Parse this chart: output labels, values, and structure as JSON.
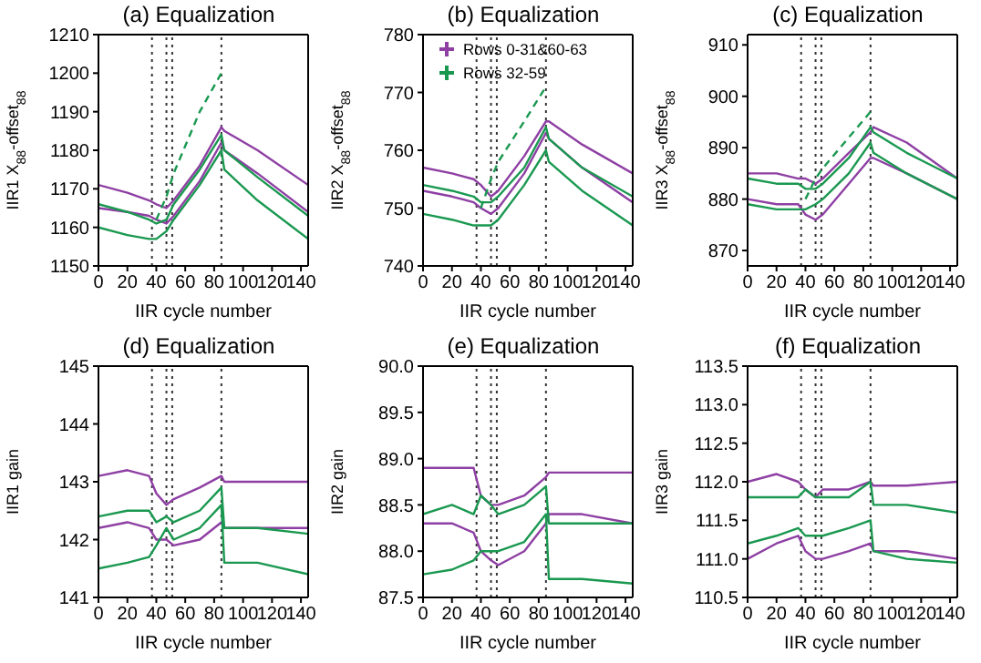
{
  "chart_data": [
    {
      "type": "line",
      "title": "(a) Equalization",
      "xlabel": "IIR cycle number",
      "ylabel": "IIR1 X$_{88}$-offset$_{88}$",
      "xlim": [
        0,
        145
      ],
      "xticks": [
        0,
        20,
        40,
        60,
        80,
        100,
        120,
        140
      ],
      "ylim": [
        1150,
        1210
      ],
      "yticks": [
        1150,
        1160,
        1170,
        1180,
        1190,
        1200,
        1210
      ],
      "x": [
        0,
        20,
        35,
        40,
        47,
        52,
        70,
        85,
        87,
        110,
        145
      ],
      "ref_lines": [
        {
          "axis": "x",
          "value": 37,
          "line_style": "dotted"
        },
        {
          "axis": "x",
          "value": 47,
          "line_style": "dotted"
        },
        {
          "axis": "x",
          "value": 51,
          "line_style": "dotted"
        },
        {
          "axis": "x",
          "value": 85,
          "line_style": "dotted"
        }
      ],
      "series": [
        {
          "color": "#8e3fa3",
          "values": [
            1171,
            1169,
            1167,
            1166,
            1165,
            1167,
            1176,
            1186,
            1185,
            1180,
            1171
          ]
        },
        {
          "color": "#8e3fa3",
          "values": [
            1165,
            1164,
            1163,
            1162,
            1161,
            1163,
            1172,
            1182,
            1180,
            1174,
            1164
          ]
        },
        {
          "color": "#1a9850",
          "values": [
            1166,
            1164,
            1162,
            1161,
            1162,
            1166,
            1175,
            1184,
            1180,
            1173,
            1163
          ]
        },
        {
          "color": "#1a9850",
          "values": [
            1160,
            1158,
            1157,
            1157,
            1159,
            1162,
            1171,
            1180,
            1175,
            1167,
            1157
          ]
        },
        {
          "color": "#1a9850",
          "line_style": "dashed",
          "x": [
            40,
            47,
            52,
            70,
            85
          ],
          "values": [
            1162,
            1168,
            1174,
            1190,
            1200
          ]
        }
      ]
    },
    {
      "type": "line",
      "title": "(b) Equalization",
      "xlabel": "IIR cycle number",
      "ylabel": "IIR2 X$_{88}$-offset$_{88}$",
      "xlim": [
        0,
        145
      ],
      "xticks": [
        0,
        20,
        40,
        60,
        80,
        100,
        120,
        140
      ],
      "ylim": [
        740,
        780
      ],
      "yticks": [
        740,
        750,
        760,
        770,
        780
      ],
      "x": [
        0,
        20,
        35,
        40,
        47,
        52,
        70,
        85,
        87,
        110,
        145
      ],
      "legend": "top left",
      "ref_lines": [
        {
          "axis": "x",
          "value": 37,
          "line_style": "dotted"
        },
        {
          "axis": "x",
          "value": 47,
          "line_style": "dotted"
        },
        {
          "axis": "x",
          "value": 51,
          "line_style": "dotted"
        },
        {
          "axis": "x",
          "value": 85,
          "line_style": "dotted"
        }
      ],
      "series": [
        {
          "name": "Rows 0-31&60-63",
          "color": "#8e3fa3",
          "values": [
            757,
            756,
            755,
            754,
            752,
            753,
            759,
            765,
            765,
            761,
            756
          ]
        },
        {
          "color": "#8e3fa3",
          "values": [
            753,
            752,
            751,
            750,
            749,
            750,
            756,
            763,
            762,
            757,
            751
          ]
        },
        {
          "name": "Rows 32-59",
          "color": "#1a9850",
          "values": [
            754,
            753,
            752,
            751,
            751,
            752,
            757,
            764,
            762,
            757,
            752
          ]
        },
        {
          "color": "#1a9850",
          "values": [
            749,
            748,
            747,
            747,
            747,
            748,
            754,
            760,
            758,
            753,
            747
          ]
        },
        {
          "color": "#1a9850",
          "line_style": "dashed",
          "x": [
            40,
            47,
            52,
            70,
            85
          ],
          "values": [
            750,
            755,
            758,
            765,
            771
          ]
        }
      ]
    },
    {
      "type": "line",
      "title": "(c) Equalization",
      "xlabel": "IIR cycle number",
      "ylabel": "IIR3 X$_{88}$-offset$_{88}$",
      "xlim": [
        0,
        145
      ],
      "xticks": [
        0,
        20,
        40,
        60,
        80,
        100,
        120,
        140
      ],
      "ylim": [
        867,
        912
      ],
      "yticks": [
        870,
        880,
        890,
        900,
        910
      ],
      "x": [
        0,
        20,
        35,
        40,
        47,
        52,
        70,
        85,
        87,
        110,
        145
      ],
      "ref_lines": [
        {
          "axis": "x",
          "value": 37,
          "line_style": "dotted"
        },
        {
          "axis": "x",
          "value": 47,
          "line_style": "dotted"
        },
        {
          "axis": "x",
          "value": 51,
          "line_style": "dotted"
        },
        {
          "axis": "x",
          "value": 85,
          "line_style": "dotted"
        }
      ],
      "series": [
        {
          "color": "#8e3fa3",
          "values": [
            885,
            885,
            884,
            884,
            883,
            884,
            889,
            893,
            894,
            891,
            884
          ]
        },
        {
          "color": "#8e3fa3",
          "values": [
            880,
            879,
            879,
            877,
            876,
            877,
            883,
            888,
            888,
            885,
            880
          ]
        },
        {
          "color": "#1a9850",
          "values": [
            884,
            883,
            883,
            882,
            882,
            883,
            888,
            894,
            893,
            889,
            884
          ]
        },
        {
          "color": "#1a9850",
          "values": [
            879,
            878,
            878,
            878,
            879,
            880,
            885,
            891,
            889,
            885,
            880
          ]
        },
        {
          "color": "#1a9850",
          "line_style": "dashed",
          "x": [
            40,
            47,
            52,
            70,
            85
          ],
          "values": [
            880,
            884,
            886,
            892,
            897
          ]
        }
      ]
    },
    {
      "type": "line",
      "title": "(d) Equalization",
      "xlabel": "IIR cycle number",
      "ylabel": "IIR1 gain",
      "xlim": [
        0,
        145
      ],
      "xticks": [
        0,
        20,
        40,
        60,
        80,
        100,
        120,
        140
      ],
      "ylim": [
        141,
        145
      ],
      "yticks": [
        141,
        142,
        143,
        144,
        145
      ],
      "x": [
        0,
        20,
        35,
        40,
        47,
        52,
        70,
        85,
        87,
        110,
        145
      ],
      "ref_lines": [
        {
          "axis": "x",
          "value": 37,
          "line_style": "dotted"
        },
        {
          "axis": "x",
          "value": 47,
          "line_style": "dotted"
        },
        {
          "axis": "x",
          "value": 51,
          "line_style": "dotted"
        },
        {
          "axis": "x",
          "value": 85,
          "line_style": "dotted"
        }
      ],
      "series": [
        {
          "color": "#8e3fa3",
          "values": [
            143.1,
            143.2,
            143.1,
            142.8,
            142.6,
            142.7,
            142.9,
            143.1,
            143.0,
            143.0,
            143.0
          ]
        },
        {
          "color": "#8e3fa3",
          "values": [
            142.2,
            142.3,
            142.2,
            142.0,
            142.0,
            141.9,
            142.0,
            142.3,
            142.2,
            142.2,
            142.2
          ]
        },
        {
          "color": "#1a9850",
          "values": [
            142.4,
            142.5,
            142.5,
            142.3,
            142.4,
            142.3,
            142.5,
            142.9,
            142.2,
            142.2,
            142.1
          ]
        },
        {
          "color": "#1a9850",
          "values": [
            141.5,
            141.6,
            141.7,
            141.9,
            142.2,
            142.0,
            142.2,
            142.6,
            141.6,
            141.6,
            141.4
          ]
        }
      ]
    },
    {
      "type": "line",
      "title": "(e) Equalization",
      "xlabel": "IIR cycle number",
      "ylabel": "IIR2 gain",
      "xlim": [
        0,
        145
      ],
      "xticks": [
        0,
        20,
        40,
        60,
        80,
        100,
        120,
        140
      ],
      "ylim": [
        87.5,
        90
      ],
      "yticks": [
        {
          "value": 87.5,
          "label": "87.5"
        },
        {
          "value": 88,
          "label": "88.0"
        },
        {
          "value": 88.5,
          "label": "88.5"
        },
        {
          "value": 89,
          "label": "89.0"
        },
        {
          "value": 89.5,
          "label": "89.5"
        },
        {
          "value": 90,
          "label": "90.0"
        }
      ],
      "x": [
        0,
        20,
        35,
        40,
        47,
        52,
        70,
        85,
        87,
        110,
        145
      ],
      "ref_lines": [
        {
          "axis": "x",
          "value": 37,
          "line_style": "dotted"
        },
        {
          "axis": "x",
          "value": 47,
          "line_style": "dotted"
        },
        {
          "axis": "x",
          "value": 51,
          "line_style": "dotted"
        },
        {
          "axis": "x",
          "value": 85,
          "line_style": "dotted"
        }
      ],
      "series": [
        {
          "color": "#8e3fa3",
          "values": [
            88.9,
            88.9,
            88.9,
            88.6,
            88.5,
            88.5,
            88.6,
            88.8,
            88.85,
            88.85,
            88.85
          ]
        },
        {
          "color": "#8e3fa3",
          "values": [
            88.3,
            88.3,
            88.2,
            88.0,
            87.9,
            87.85,
            88.0,
            88.3,
            88.4,
            88.4,
            88.3
          ]
        },
        {
          "color": "#1a9850",
          "values": [
            88.4,
            88.5,
            88.4,
            88.6,
            88.5,
            88.4,
            88.5,
            88.7,
            88.3,
            88.3,
            88.3
          ]
        },
        {
          "color": "#1a9850",
          "values": [
            87.75,
            87.8,
            87.9,
            88.0,
            88.0,
            88.0,
            88.1,
            88.4,
            87.7,
            87.7,
            87.65
          ]
        }
      ]
    },
    {
      "type": "line",
      "title": "(f) Equalization",
      "xlabel": "IIR cycle number",
      "ylabel": "IIR3 gain",
      "xlim": [
        0,
        145
      ],
      "xticks": [
        0,
        20,
        40,
        60,
        80,
        100,
        120,
        140
      ],
      "ylim": [
        110.5,
        113.5
      ],
      "yticks": [
        110.5,
        {
          "value": 111,
          "label": "111.0"
        },
        111.5,
        {
          "value": 112,
          "label": "112.0"
        },
        112.5,
        {
          "value": 113,
          "label": "113.0"
        },
        113.5
      ],
      "x": [
        0,
        20,
        35,
        40,
        47,
        52,
        70,
        85,
        87,
        110,
        145
      ],
      "ref_lines": [
        {
          "axis": "x",
          "value": 37,
          "line_style": "dotted"
        },
        {
          "axis": "x",
          "value": 47,
          "line_style": "dotted"
        },
        {
          "axis": "x",
          "value": 51,
          "line_style": "dotted"
        },
        {
          "axis": "x",
          "value": 85,
          "line_style": "dotted"
        }
      ],
      "series": [
        {
          "color": "#8e3fa3",
          "values": [
            112.0,
            112.1,
            112.0,
            111.9,
            111.8,
            111.9,
            111.9,
            112.0,
            111.95,
            111.95,
            112.0
          ]
        },
        {
          "color": "#8e3fa3",
          "values": [
            111.0,
            111.2,
            111.3,
            111.1,
            111.0,
            111.0,
            111.1,
            111.2,
            111.1,
            111.1,
            111.0
          ]
        },
        {
          "color": "#1a9850",
          "values": [
            111.8,
            111.8,
            111.8,
            111.9,
            111.8,
            111.8,
            111.8,
            112.0,
            111.7,
            111.7,
            111.6
          ]
        },
        {
          "color": "#1a9850",
          "values": [
            111.2,
            111.3,
            111.4,
            111.3,
            111.3,
            111.3,
            111.4,
            111.5,
            111.1,
            111.0,
            110.95
          ]
        }
      ]
    }
  ]
}
